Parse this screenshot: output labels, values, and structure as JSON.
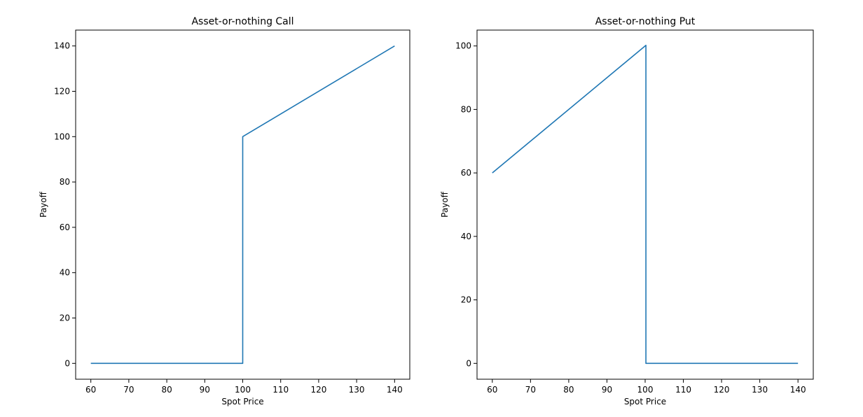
{
  "chart_data": [
    {
      "type": "line",
      "title": "Asset-or-nothing Call",
      "xlabel": "Spot Price",
      "ylabel": "Payoff",
      "xlim": [
        56,
        144
      ],
      "ylim": [
        -7,
        147
      ],
      "xticks": [
        60,
        70,
        80,
        90,
        100,
        110,
        120,
        130,
        140
      ],
      "yticks": [
        0,
        20,
        40,
        60,
        80,
        100,
        120,
        140
      ],
      "grid": false,
      "color": "#1f77b4",
      "series": [
        {
          "x": [
            60,
            100,
            100,
            100.1,
            140
          ],
          "y": [
            0,
            0,
            100,
            100.1,
            140
          ]
        }
      ]
    },
    {
      "type": "line",
      "title": "Asset-or-nothing Put",
      "xlabel": "Spot Price",
      "ylabel": "Payoff",
      "xlim": [
        56,
        144
      ],
      "ylim": [
        -5,
        105
      ],
      "xticks": [
        60,
        70,
        80,
        90,
        100,
        110,
        120,
        130,
        140
      ],
      "yticks": [
        0,
        20,
        40,
        60,
        80,
        100
      ],
      "grid": false,
      "color": "#1f77b4",
      "series": [
        {
          "x": [
            60,
            99.6,
            99.9,
            100.2,
            100.2,
            140
          ],
          "y": [
            60,
            99.6,
            99.9,
            100.2,
            0,
            0
          ]
        }
      ]
    }
  ]
}
